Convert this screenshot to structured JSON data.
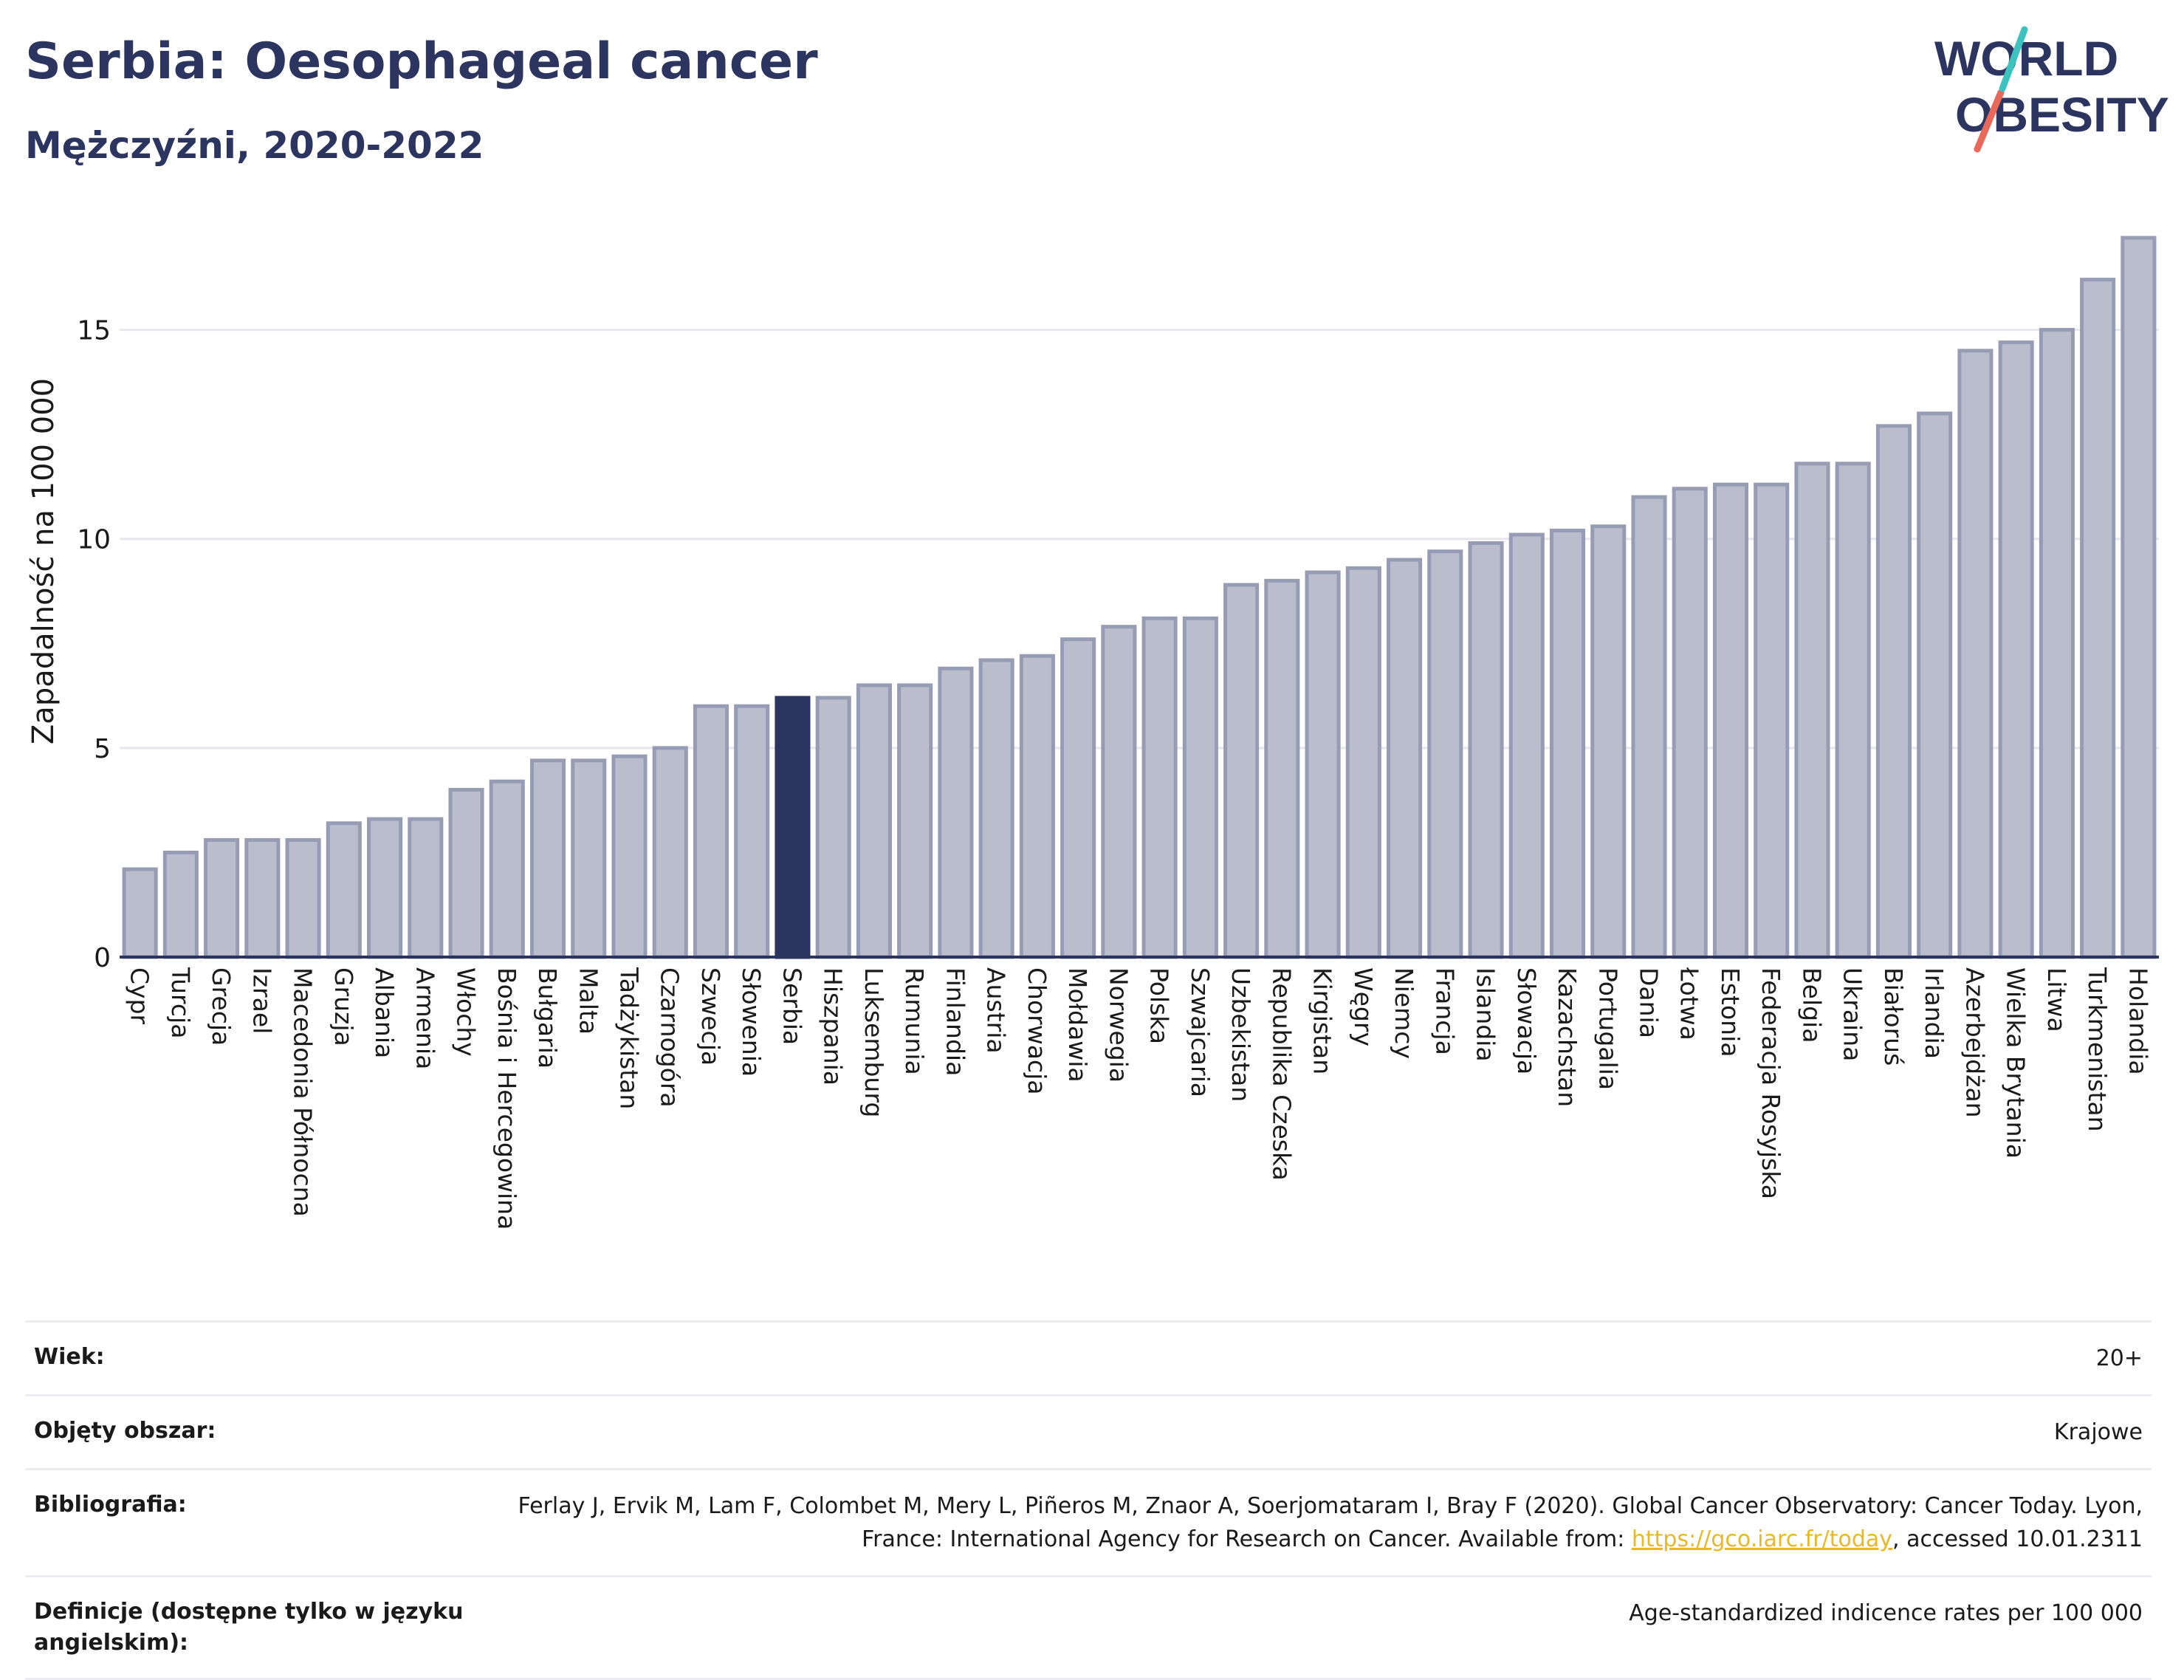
{
  "header": {
    "title": "Serbia: Oesophageal cancer",
    "subtitle": "Mężczyźni, 2020-2022"
  },
  "logo": {
    "line1": "WORLD",
    "line2": "OBESITY"
  },
  "colors": {
    "bar": "#b9bdcc",
    "bar_stroke": "#979cb5",
    "highlight": "#2b3560",
    "grid": "#e6e6ec",
    "axis": "#2b3560"
  },
  "chart_data": {
    "type": "bar",
    "ylabel": "Zapadalność na 100 000",
    "ylim": [
      0,
      17.2
    ],
    "yticks": [
      0,
      5,
      10,
      15
    ],
    "highlight": "Serbia",
    "categories": [
      "Cypr",
      "Turcja",
      "Grecja",
      "Izrael",
      "Macedonia Północna",
      "Gruzja",
      "Albania",
      "Armenia",
      "Włochy",
      "Bośnia i Hercegowina",
      "Bułgaria",
      "Malta",
      "Tadżykistan",
      "Czarnogóra",
      "Szwecja",
      "Słowenia",
      "Serbia",
      "Hiszpania",
      "Luksemburg",
      "Rumunia",
      "Finlandia",
      "Austria",
      "Chorwacja",
      "Mołdawia",
      "Norwegia",
      "Polska",
      "Szwajcaria",
      "Uzbekistan",
      "Republika Czeska",
      "Kirgistan",
      "Węgry",
      "Niemcy",
      "Francja",
      "Islandia",
      "Słowacja",
      "Kazachstan",
      "Portugalia",
      "Dania",
      "Łotwa",
      "Estonia",
      "Federacja Rosyjska",
      "Belgia",
      "Ukraina",
      "Białoruś",
      "Irlandia",
      "Azerbejdżan",
      "Wielka Brytania",
      "Litwa",
      "Turkmenistan",
      "Holandia"
    ],
    "values": [
      2.1,
      2.5,
      2.8,
      2.8,
      2.8,
      3.2,
      3.3,
      3.3,
      4.0,
      4.2,
      4.7,
      4.7,
      4.8,
      5.0,
      6.0,
      6.0,
      6.2,
      6.2,
      6.5,
      6.5,
      6.9,
      7.1,
      7.2,
      7.6,
      7.9,
      8.1,
      8.1,
      8.9,
      9.0,
      9.2,
      9.3,
      9.5,
      9.7,
      9.9,
      10.1,
      10.2,
      10.3,
      11.0,
      11.2,
      11.3,
      11.3,
      11.8,
      11.8,
      12.7,
      13.0,
      14.5,
      14.7,
      15.0,
      16.2,
      17.2
    ]
  },
  "meta": {
    "age_label": "Wiek:",
    "age_value": "20+",
    "area_label": "Objęty obszar:",
    "area_value": "Krajowe",
    "bib_label": "Bibliografia:",
    "bib_text_1": "Ferlay J, Ervik M, Lam F, Colombet M, Mery L, Piñeros M, Znaor A, Soerjomataram I, Bray F (2020). Global Cancer Observatory: Cancer Today. Lyon, France: International Agency for Research on Cancer. Available from: ",
    "bib_link": "https://gco.iarc.fr/today",
    "bib_text_2": ", accessed 10.01.2311",
    "def_label": "Definicje (dostępne tylko w języku angielskim):",
    "def_value": "Age-standardized indicence rates per 100 000"
  }
}
